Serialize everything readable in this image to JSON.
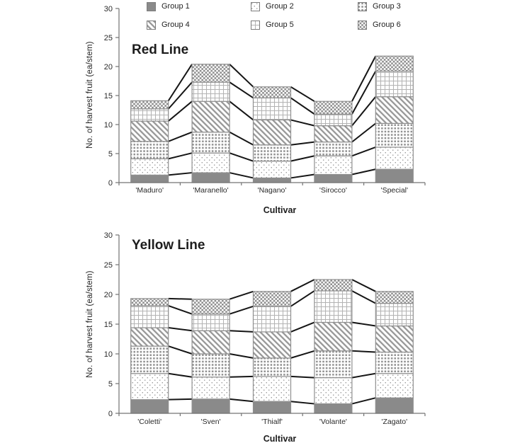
{
  "figure": {
    "background": "#ffffff"
  },
  "colors": {
    "bar_solid": "#8a8a8a",
    "pattern_gray": "#979797",
    "bar_outline": "#8f8f8f",
    "connector_line": "#151515",
    "axis": "#737373",
    "tick_text": "#2a2a2a"
  },
  "legend": {
    "position": "top-inside",
    "columns": 3
  },
  "chart_data": [
    {
      "type": "bar",
      "stacked": true,
      "connectors": true,
      "title": "Red Line",
      "xlabel": "Cultivar",
      "ylabel": "No. of harvest fruit (ea/stem)",
      "ylim": [
        0,
        30
      ],
      "yticks": [
        0,
        5,
        10,
        15,
        20,
        25,
        30
      ],
      "grid": false,
      "categories": [
        "'Maduro'",
        "'Maranello'",
        "'Nagano'",
        "'Sirocco'",
        "'Special'"
      ],
      "series": [
        {
          "name": "Group 1",
          "pattern": "g1",
          "values": [
            1.3,
            1.7,
            0.8,
            1.4,
            2.3
          ]
        },
        {
          "name": "Group 2",
          "pattern": "g2",
          "values": [
            2.8,
            3.4,
            2.9,
            3.2,
            3.8
          ]
        },
        {
          "name": "Group 3",
          "pattern": "g3",
          "values": [
            3.0,
            3.6,
            2.8,
            2.4,
            4.1
          ]
        },
        {
          "name": "Group 4",
          "pattern": "g4",
          "values": [
            3.5,
            5.3,
            4.3,
            2.8,
            4.6
          ]
        },
        {
          "name": "Group 5",
          "pattern": "g5",
          "values": [
            2.1,
            3.3,
            3.8,
            2.0,
            4.4
          ]
        },
        {
          "name": "Group 6",
          "pattern": "g6",
          "values": [
            1.4,
            3.1,
            1.9,
            2.2,
            2.6
          ]
        }
      ],
      "totals": [
        14.1,
        20.4,
        16.5,
        14.0,
        21.8
      ]
    },
    {
      "type": "bar",
      "stacked": true,
      "connectors": true,
      "title": "Yellow Line",
      "xlabel": "Cultivar",
      "ylabel": "No. of harvest fruit (ea/stem)",
      "ylim": [
        0,
        30
      ],
      "yticks": [
        0,
        5,
        10,
        15,
        20,
        25,
        30
      ],
      "grid": false,
      "categories": [
        "'Coletti'",
        "'Sven'",
        "'Thialf'",
        "'Volante'",
        "'Zagato'"
      ],
      "series": [
        {
          "name": "Group 1",
          "pattern": "g1",
          "values": [
            2.3,
            2.4,
            2.0,
            1.6,
            2.6
          ]
        },
        {
          "name": "Group 2",
          "pattern": "g2",
          "values": [
            4.4,
            3.7,
            4.2,
            4.4,
            4.1
          ]
        },
        {
          "name": "Group 3",
          "pattern": "g3",
          "values": [
            4.6,
            3.9,
            3.1,
            4.5,
            3.6
          ]
        },
        {
          "name": "Group 4",
          "pattern": "g4",
          "values": [
            3.1,
            3.9,
            4.4,
            4.8,
            4.4
          ]
        },
        {
          "name": "Group 5",
          "pattern": "g5",
          "values": [
            3.7,
            2.8,
            4.3,
            5.3,
            3.8
          ]
        },
        {
          "name": "Group 6",
          "pattern": "g6",
          "values": [
            1.2,
            2.5,
            2.5,
            1.9,
            2.0
          ]
        }
      ],
      "totals": [
        19.3,
        19.2,
        20.5,
        22.5,
        20.5
      ]
    }
  ]
}
